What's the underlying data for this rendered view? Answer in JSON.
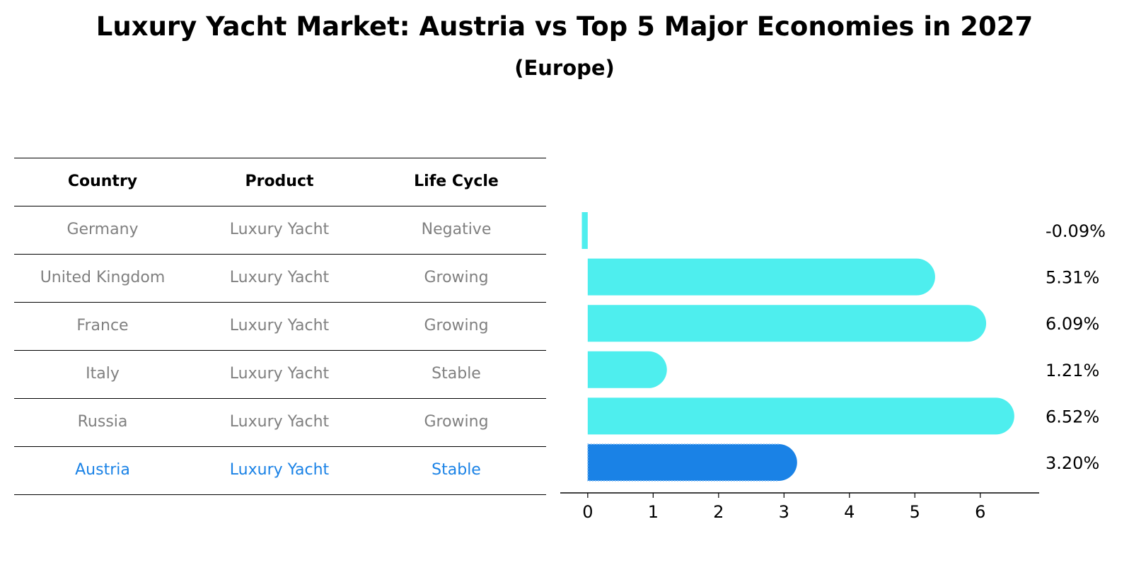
{
  "title": "Luxury Yacht Market: Austria vs Top 5 Major Economies in 2027",
  "subtitle": "(Europe)",
  "table": {
    "headers": [
      "Country",
      "Product",
      "Life Cycle"
    ],
    "rows": [
      [
        "Germany",
        "Luxury Yacht",
        "Negative"
      ],
      [
        "United Kingdom",
        "Luxury Yacht",
        "Growing"
      ],
      [
        "France",
        "Luxury Yacht",
        "Growing"
      ],
      [
        "Italy",
        "Luxury Yacht",
        "Stable"
      ],
      [
        "Russia",
        "Luxury Yacht",
        "Growing"
      ],
      [
        "Austria",
        "Luxury Yacht",
        "Stable"
      ]
    ]
  },
  "colors": {
    "bar": "#4eeeee",
    "highlight_bar": "#1a82e6",
    "highlight_text": "#1a82e6",
    "muted_text": "#808080",
    "axis": "#000000"
  },
  "chart_data": {
    "type": "bar",
    "orientation": "horizontal",
    "categories": [
      "Germany",
      "United Kingdom",
      "France",
      "Italy",
      "Russia",
      "Austria"
    ],
    "values": [
      -0.09,
      5.31,
      6.09,
      1.21,
      6.52,
      3.2
    ],
    "labels": [
      "-0.09%",
      "5.31%",
      "6.09%",
      "1.21%",
      "6.52%",
      "3.20%"
    ],
    "highlight": "Austria",
    "xlim": [
      -0.42,
      6.9
    ],
    "xticks": [
      0,
      1,
      2,
      3,
      4,
      5,
      6
    ],
    "xlabel": "",
    "ylabel": "",
    "grid": false,
    "legend": "none"
  }
}
